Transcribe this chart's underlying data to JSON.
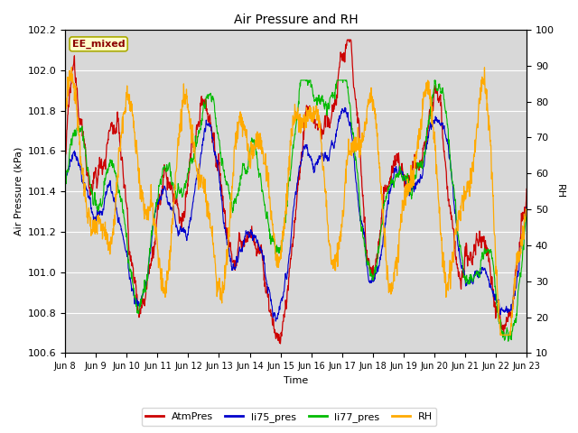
{
  "title": "Air Pressure and RH",
  "xlabel": "Time",
  "ylabel_left": "Air Pressure (kPa)",
  "ylabel_right": "RH",
  "ylim_left": [
    100.6,
    102.2
  ],
  "ylim_right": [
    10,
    100
  ],
  "yticks_left": [
    100.6,
    100.8,
    101.0,
    101.2,
    101.4,
    101.6,
    101.8,
    102.0,
    102.2
  ],
  "yticks_right": [
    10,
    20,
    30,
    40,
    50,
    60,
    70,
    80,
    90,
    100
  ],
  "xtick_labels": [
    "Jun 8",
    "Jun 9",
    "Jun 10",
    "Jun 11",
    "Jun 12",
    "Jun 13",
    "Jun 14",
    "Jun 15",
    "Jun 16",
    "Jun 17",
    "Jun 18",
    "Jun 19",
    "Jun 20",
    "Jun 21",
    "Jun 22",
    "Jun 23"
  ],
  "n_points": 1500,
  "color_atm": "#cc0000",
  "color_li75": "#0000cc",
  "color_li77": "#00bb00",
  "color_rh": "#ffaa00",
  "legend_label_atm": "AtmPres",
  "legend_label_li75": "li75_pres",
  "legend_label_li77": "li77_pres",
  "legend_label_rh": "RH",
  "annotation_text": "EE_mixed",
  "annotation_bg": "#ffffcc",
  "annotation_border": "#aaaa00",
  "fig_bg_color": "#ffffff",
  "plot_bg_color": "#d8d8d8"
}
